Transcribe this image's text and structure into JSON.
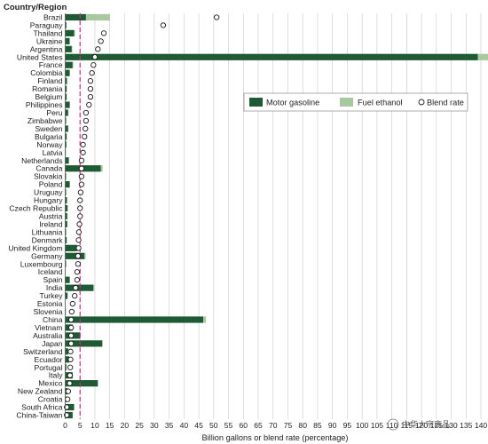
{
  "chart_data": {
    "type": "bar",
    "title": "Country/Region",
    "xlabel": "Billion gallons or blend rate (percentage)",
    "ylabel": "",
    "xlim": [
      0,
      140
    ],
    "x_ticks": [
      "0",
      "5",
      "10",
      "15",
      "20",
      "25",
      "30",
      "35",
      "40",
      "45",
      "50",
      "55",
      "60",
      "65",
      "70",
      "75",
      "80",
      "85",
      "90",
      "95",
      "100",
      "105",
      "110",
      "115",
      "120",
      "125",
      "130",
      "135",
      "140"
    ],
    "reference_line": 5,
    "legend_position": "right-middle",
    "categories": [
      "Brazil",
      "Paraguay",
      "Thailand",
      "Ukraine",
      "Argentina",
      "United States",
      "France",
      "Colombia",
      "Finland",
      "Romania",
      "Belgium",
      "Philippines",
      "Peru",
      "Zimbabwe",
      "Sweden",
      "Bulgaria",
      "Norway",
      "Latvia",
      "Netherlands",
      "Canada",
      "Slovakia",
      "Poland",
      "Uruguay",
      "Hungary",
      "Czech Republic",
      "Austria",
      "Ireland",
      "Lithuania",
      "Denmark",
      "United Kingdom",
      "Germany",
      "Luxembourg",
      "Iceland",
      "Spain",
      "India",
      "Turkey",
      "Estonia",
      "Slovenia",
      "China",
      "Vietnam",
      "Australia",
      "Japan",
      "Switzerland",
      "Ecuador",
      "Portugal",
      "Italy",
      "Mexico",
      "New Zealand",
      "Croatia",
      "South Africa",
      "China-Taiwan"
    ],
    "series": [
      {
        "name": "Motor gasoline",
        "color": "#1e5a33",
        "kind": "bar",
        "values": [
          7,
          0.4,
          3,
          1.5,
          2.2,
          139,
          2.5,
          1.5,
          0.6,
          0.5,
          0.5,
          1.5,
          1,
          0.3,
          1,
          0.5,
          0.4,
          0.2,
          1.2,
          12,
          0.3,
          1.5,
          0.3,
          0.6,
          0.8,
          0.7,
          0.7,
          0.3,
          0.5,
          4,
          6.5,
          0.3,
          0.1,
          1.5,
          9.5,
          0.8,
          0.1,
          0.2,
          46.5,
          2.5,
          5,
          12.5,
          1,
          1.3,
          0.4,
          2.5,
          11,
          0.8,
          0.3,
          3,
          2.5
        ]
      },
      {
        "name": "Fuel ethanol",
        "color": "#a8c9a0",
        "kind": "bar",
        "values": [
          8,
          0,
          0.3,
          0,
          0.2,
          14,
          0.2,
          0.1,
          0,
          0,
          0,
          0.1,
          0.1,
          0,
          0.1,
          0,
          0,
          0,
          0.1,
          0.6,
          0,
          0.1,
          0,
          0,
          0.1,
          0.1,
          0,
          0,
          0,
          0.2,
          0.4,
          0,
          0,
          0.1,
          0.3,
          0,
          0,
          0,
          0.9,
          0.1,
          0.2,
          0.1,
          0,
          0,
          0,
          0.1,
          0,
          0,
          0,
          0,
          0
        ]
      },
      {
        "name": "Blend rate",
        "color": "#ffffff",
        "kind": "point",
        "values": [
          51,
          33,
          13,
          12,
          11,
          10,
          9.5,
          9,
          8.5,
          8.5,
          8.5,
          8,
          7,
          7,
          6.8,
          6.5,
          6,
          6,
          5.5,
          5.5,
          5.5,
          5.5,
          5.2,
          5,
          5,
          5,
          4.8,
          4.6,
          4.5,
          4.5,
          4.3,
          4.3,
          4,
          4,
          3.5,
          3.2,
          2.5,
          2.2,
          2,
          2,
          2,
          2,
          1.8,
          1.8,
          1.7,
          1.6,
          1.5,
          1,
          0.8,
          0.5,
          0.5
        ]
      }
    ]
  },
  "watermark": "中华大宗商品"
}
